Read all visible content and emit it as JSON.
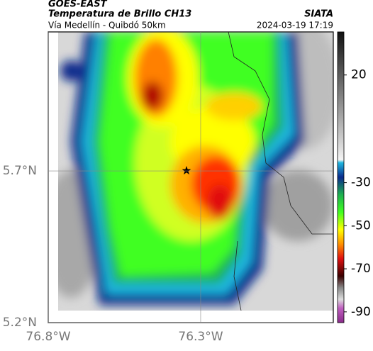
{
  "header": {
    "title": "GOES-EAST",
    "subtitle": "Temperatura de Brillo CH13",
    "route": "Vía Medellín - Quibdó 50km",
    "source": "SIATA",
    "datetime": "2024-03-19 17:19"
  },
  "map": {
    "lonlim": [
      -76.8,
      -75.865
    ],
    "latlim": [
      5.2,
      6.158
    ],
    "xticks": [
      {
        "value": -76.8,
        "label": "76.8°W"
      },
      {
        "value": -76.3,
        "label": "76.3°W"
      }
    ],
    "yticks": [
      {
        "value": 5.2,
        "label": "5.2°N"
      },
      {
        "value": 5.7,
        "label": "5.7°N"
      }
    ]
  },
  "colorbar": {
    "lim": [
      40,
      -95
    ],
    "ticks": [
      20,
      -30,
      -50,
      -70,
      -90
    ]
  }
}
